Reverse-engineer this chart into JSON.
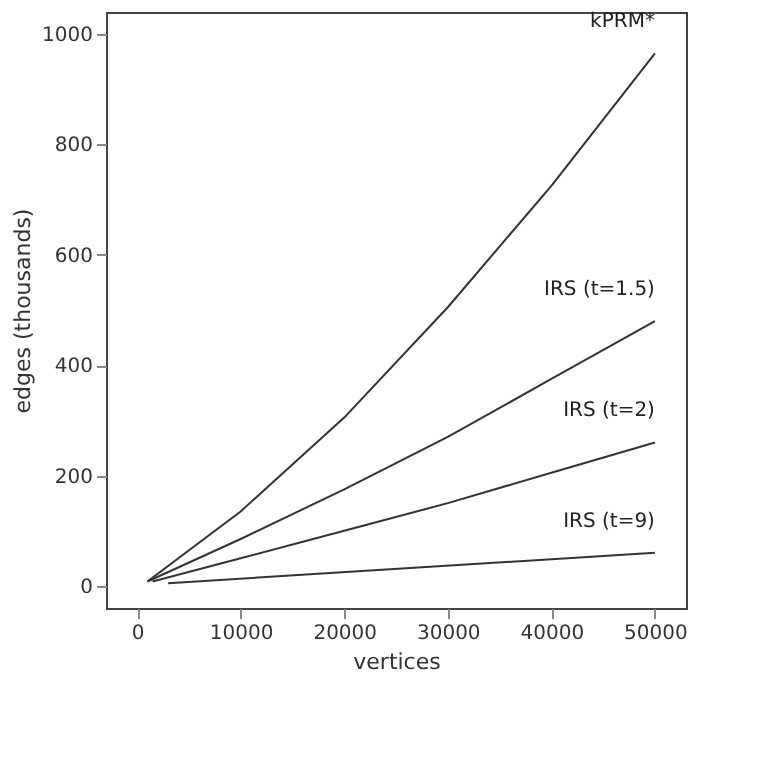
{
  "chart_data": {
    "type": "line",
    "xlabel": "vertices",
    "ylabel": "edges (thousands)",
    "xlim": [
      -3000,
      53000
    ],
    "xticks": [
      0,
      10000,
      20000,
      30000,
      40000,
      50000
    ],
    "ylim": [
      -40,
      1040
    ],
    "yticks": [
      0,
      200,
      400,
      600,
      800,
      1000
    ],
    "grid": false,
    "legend": false,
    "marker": "none",
    "line_style": "solid",
    "series": [
      {
        "name": "kPRM*",
        "color": "#333333",
        "x": [
          1000,
          10000,
          20000,
          30000,
          40000,
          50000
        ],
        "values": [
          8,
          135,
          305,
          505,
          725,
          965
        ]
      },
      {
        "name": "IRS (t=1.5)",
        "color": "#333333",
        "x": [
          1000,
          10000,
          20000,
          30000,
          40000,
          50000
        ],
        "values": [
          8,
          85,
          175,
          270,
          375,
          480
        ]
      },
      {
        "name": "IRS (t=2)",
        "color": "#333333",
        "x": [
          1500,
          10000,
          20000,
          30000,
          40000,
          50000
        ],
        "values": [
          8,
          50,
          100,
          150,
          205,
          260
        ]
      },
      {
        "name": "IRS (t=9)",
        "color": "#333333",
        "x": [
          3000,
          50000
        ],
        "values": [
          5,
          60
        ]
      }
    ]
  }
}
